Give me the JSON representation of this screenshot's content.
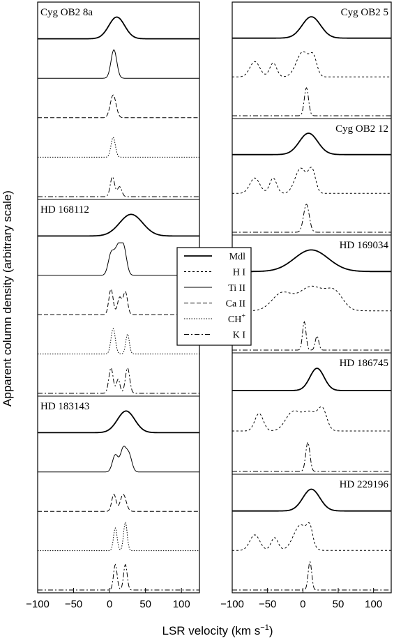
{
  "chart_data": {
    "type": "line",
    "xlabel": "LSR velocity (km s",
    "xlabel_sup": "−1",
    "xlabel_end": ")",
    "ylabel": "Apparent column density (arbitrary scale)",
    "xlim": [
      -100,
      125
    ],
    "xticks": [
      -100,
      -50,
      0,
      50,
      100
    ],
    "xtick_labels": [
      "−100",
      "−50",
      "0",
      "50",
      "100"
    ],
    "legend": {
      "placement": "center",
      "entries": [
        {
          "label": "Mdl",
          "sup": "",
          "style": "solid-thick"
        },
        {
          "label": "H I",
          "sup": "",
          "style": "dotted-dash"
        },
        {
          "label": "Ti II",
          "sup": "",
          "style": "solid"
        },
        {
          "label": "Ca II",
          "sup": "",
          "style": "dashed"
        },
        {
          "label": "CH",
          "sup": "+",
          "style": "dotted"
        },
        {
          "label": "K I",
          "sup": "",
          "style": "dash-dot"
        }
      ]
    },
    "panels": [
      {
        "label": "Cyg OB2 8a",
        "label_pos": "left",
        "column": "left",
        "traces": [
          {
            "species": "Mdl",
            "components": [
              {
                "v": 10,
                "w": 11,
                "a": 1
              }
            ]
          },
          {
            "species": "Ti II",
            "components": [
              {
                "v": 6,
                "w": 4,
                "a": 1
              }
            ]
          },
          {
            "species": "Ca II",
            "components": [
              {
                "v": 5,
                "w": 4,
                "a": 0.8
              }
            ]
          },
          {
            "species": "CH+",
            "components": [
              {
                "v": 5,
                "w": 3,
                "a": 0.7
              }
            ]
          },
          {
            "species": "K I",
            "components": [
              {
                "v": 4,
                "w": 3,
                "a": 0.7
              },
              {
                "v": 14,
                "w": 3,
                "a": 0.35
              }
            ]
          }
        ]
      },
      {
        "label": "HD 168112",
        "label_pos": "left",
        "column": "left",
        "traces": [
          {
            "species": "Mdl",
            "components": [
              {
                "v": 30,
                "w": 16,
                "a": 1
              }
            ]
          },
          {
            "species": "Ti II",
            "components": [
              {
                "v": 2,
                "w": 4,
                "a": 0.7
              },
              {
                "v": 12,
                "w": 5,
                "a": 1
              },
              {
                "v": 20,
                "w": 4,
                "a": 0.8
              }
            ]
          },
          {
            "species": "Ca II",
            "components": [
              {
                "v": 2,
                "w": 3,
                "a": 0.9
              },
              {
                "v": 14,
                "w": 3,
                "a": 0.6
              },
              {
                "v": 22,
                "w": 3,
                "a": 0.8
              }
            ]
          },
          {
            "species": "CH+",
            "components": [
              {
                "v": 5,
                "w": 3,
                "a": 0.9
              },
              {
                "v": 25,
                "w": 2.5,
                "a": 0.7
              }
            ]
          },
          {
            "species": "K I",
            "components": [
              {
                "v": 2,
                "w": 3,
                "a": 0.9
              },
              {
                "v": 12,
                "w": 2.5,
                "a": 0.5
              },
              {
                "v": 25,
                "w": 3,
                "a": 0.9
              }
            ]
          }
        ]
      },
      {
        "label": "HD 183143",
        "label_pos": "left",
        "column": "left",
        "traces": [
          {
            "species": "Mdl",
            "components": [
              {
                "v": 23,
                "w": 12,
                "a": 1
              }
            ]
          },
          {
            "species": "Ti II",
            "components": [
              {
                "v": 8,
                "w": 4,
                "a": 0.6
              },
              {
                "v": 19,
                "w": 4,
                "a": 0.8
              },
              {
                "v": 27,
                "w": 4,
                "a": 0.6
              }
            ]
          },
          {
            "species": "Ca II",
            "components": [
              {
                "v": 6,
                "w": 3,
                "a": 0.6
              },
              {
                "v": 19,
                "w": 4,
                "a": 0.6
              }
            ]
          },
          {
            "species": "CH+",
            "components": [
              {
                "v": 8,
                "w": 2.5,
                "a": 0.8
              },
              {
                "v": 22,
                "w": 2.5,
                "a": 1
              }
            ]
          },
          {
            "species": "K I",
            "components": [
              {
                "v": 8,
                "w": 2.5,
                "a": 0.9
              },
              {
                "v": 22,
                "w": 2.5,
                "a": 0.9
              }
            ]
          }
        ]
      },
      {
        "label": "Cyg OB2 5",
        "label_pos": "right",
        "column": "right",
        "traces": [
          {
            "species": "Mdl",
            "components": [
              {
                "v": 12,
                "w": 13,
                "a": 1
              }
            ]
          },
          {
            "species": "H I",
            "components": [
              {
                "v": -68,
                "w": 7,
                "a": 0.55
              },
              {
                "v": -42,
                "w": 5,
                "a": 0.5
              },
              {
                "v": 0,
                "w": 9,
                "a": 0.9
              },
              {
                "v": 15,
                "w": 5,
                "a": 0.6
              }
            ]
          },
          {
            "species": "K I",
            "components": [
              {
                "v": 5,
                "w": 3,
                "a": 1
              }
            ]
          }
        ]
      },
      {
        "label": "Cyg OB2 12",
        "label_pos": "right",
        "column": "right",
        "traces": [
          {
            "species": "Mdl",
            "components": [
              {
                "v": 8,
                "w": 13,
                "a": 1
              }
            ]
          },
          {
            "species": "H I",
            "components": [
              {
                "v": -68,
                "w": 7,
                "a": 0.55
              },
              {
                "v": -42,
                "w": 5,
                "a": 0.55
              },
              {
                "v": -3,
                "w": 8,
                "a": 0.9
              },
              {
                "v": 13,
                "w": 5,
                "a": 0.8
              }
            ]
          },
          {
            "species": "K I",
            "components": [
              {
                "v": 5,
                "w": 4,
                "a": 1
              }
            ]
          }
        ]
      },
      {
        "label": "HD 169034",
        "label_pos": "right",
        "column": "right",
        "traces": [
          {
            "species": "Mdl",
            "components": [
              {
                "v": 12,
                "w": 24,
                "a": 1
              }
            ]
          },
          {
            "species": "H I",
            "components": [
              {
                "v": -30,
                "w": 14,
                "a": 0.6
              },
              {
                "v": 12,
                "w": 18,
                "a": 0.85
              },
              {
                "v": 45,
                "w": 12,
                "a": 0.6
              }
            ]
          },
          {
            "species": "K I",
            "components": [
              {
                "v": 2,
                "w": 2.5,
                "a": 1
              },
              {
                "v": 20,
                "w": 2.5,
                "a": 0.5
              }
            ]
          }
        ]
      },
      {
        "label": "HD 186745",
        "label_pos": "right",
        "column": "right",
        "traces": [
          {
            "species": "Mdl",
            "components": [
              {
                "v": 20,
                "w": 10,
                "a": 1
              }
            ]
          },
          {
            "species": "H I",
            "components": [
              {
                "v": -62,
                "w": 6,
                "a": 0.6
              },
              {
                "v": -15,
                "w": 10,
                "a": 0.6
              },
              {
                "v": 10,
                "w": 12,
                "a": 0.65
              },
              {
                "v": 28,
                "w": 6,
                "a": 0.6
              }
            ]
          },
          {
            "species": "K I",
            "components": [
              {
                "v": 7,
                "w": 3,
                "a": 1
              }
            ]
          }
        ]
      },
      {
        "label": "HD 229196",
        "label_pos": "right",
        "column": "right",
        "traces": [
          {
            "species": "Mdl",
            "components": [
              {
                "v": 12,
                "w": 12,
                "a": 1
              }
            ]
          },
          {
            "species": "H I",
            "components": [
              {
                "v": -68,
                "w": 7,
                "a": 0.55
              },
              {
                "v": -40,
                "w": 5,
                "a": 0.45
              },
              {
                "v": -3,
                "w": 10,
                "a": 0.9
              },
              {
                "v": 10,
                "w": 4,
                "a": 0.55
              }
            ]
          },
          {
            "species": "K I",
            "components": [
              {
                "v": 10,
                "w": 2.5,
                "a": 1
              }
            ]
          }
        ]
      }
    ]
  }
}
